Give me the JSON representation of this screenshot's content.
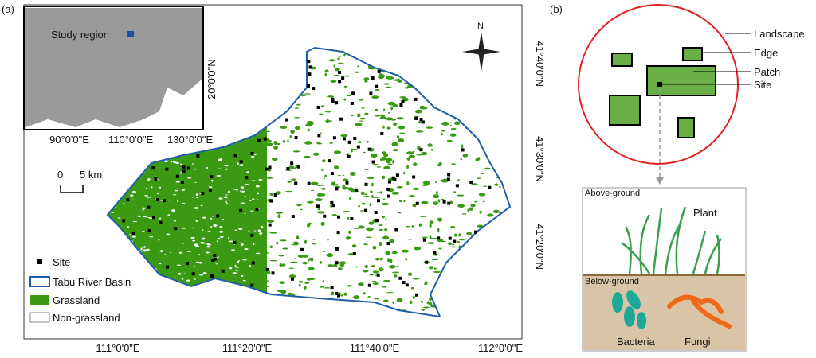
{
  "panel_a": {
    "label": "(a)",
    "inset": {
      "label": "Study region",
      "x_labels": [
        "90°0'0\"E",
        "110°0'0\"E",
        "130°0'0\"E"
      ],
      "y_label": "20°0'0\"N"
    },
    "north": "N",
    "scale_bar": {
      "start": "0",
      "end": "5 km"
    },
    "legend": [
      "Site",
      "Tabu River Basin",
      "Grassland",
      "Non-grassland"
    ],
    "x_labels": [
      "111°0'0\"E",
      "111°20'0\"E",
      "111°40'0\"E",
      "112°0'0\"E"
    ],
    "y_labels": [
      "41°40'0\"N",
      "41°30'0\"N",
      "41°20'0\"N"
    ]
  },
  "panel_b": {
    "label": "(b)",
    "landscape_labels": [
      "Landscape",
      "Edge",
      "Patch",
      "Site"
    ],
    "box": {
      "above": "Above-ground",
      "plant": "Plant",
      "below": "Below-ground",
      "bacteria": "Bacteria",
      "fungi": "Fungi"
    }
  }
}
